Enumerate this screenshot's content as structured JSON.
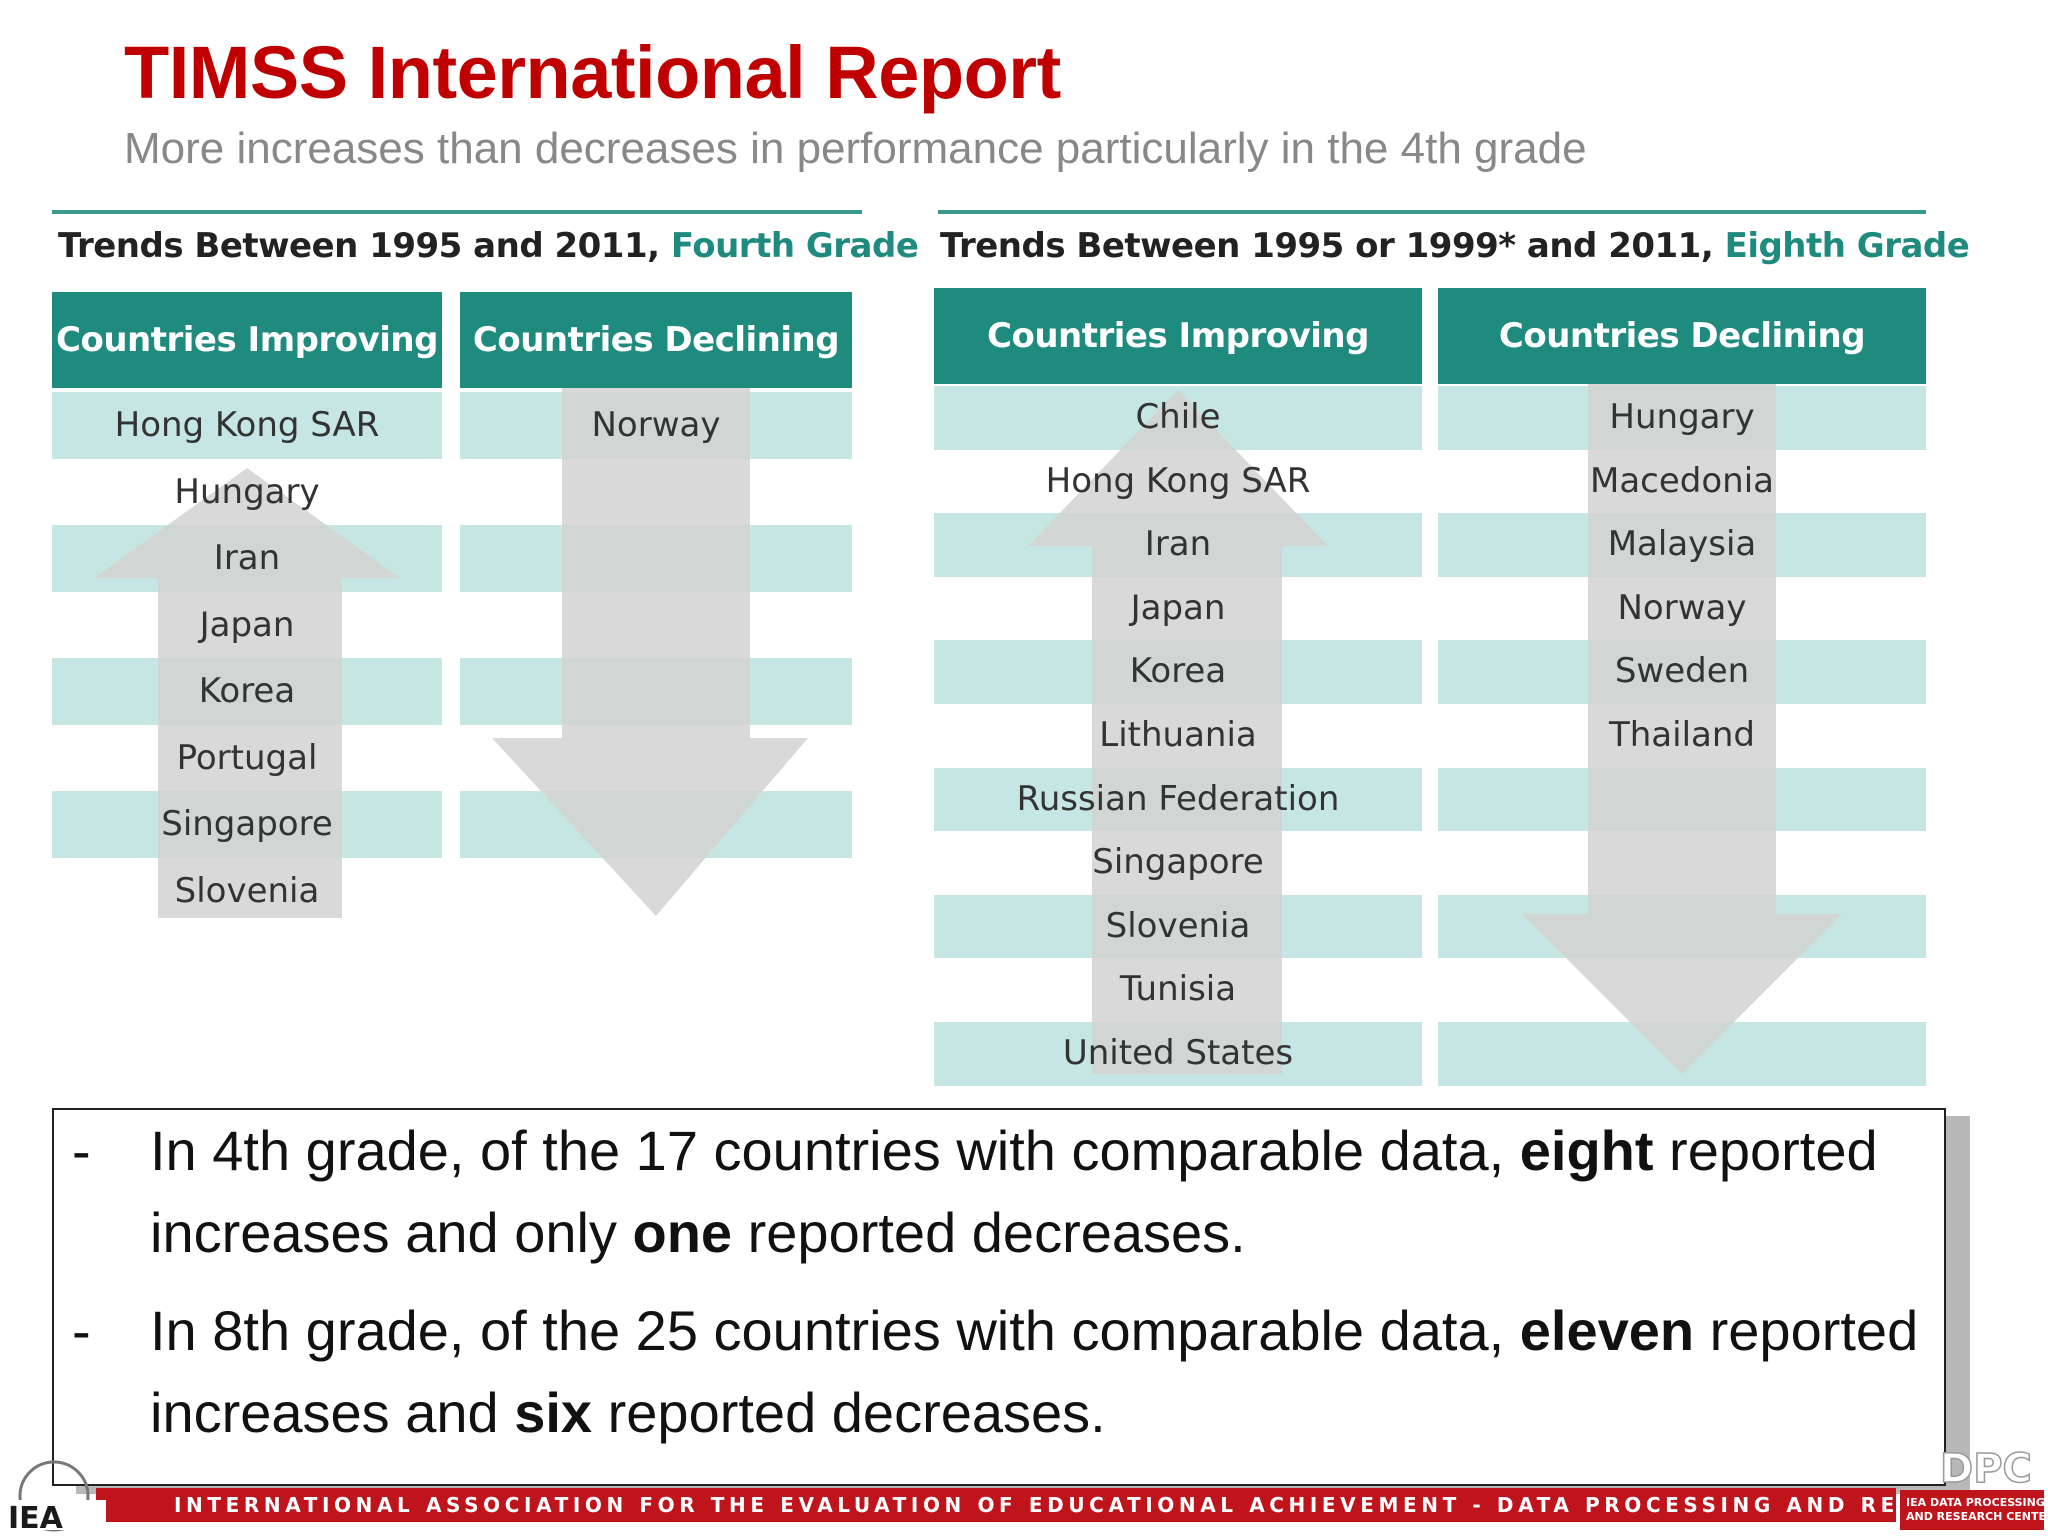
{
  "title": "TIMSS International Report",
  "subtitle": "More increases than decreases in performance particularly in the 4th grade",
  "fourth_grade": {
    "heading_prefix": "Trends Between 1995 and 2011,",
    "heading_grade": "Fourth Grade",
    "improving_label": "Countries Improving",
    "declining_label": "Countries Declining",
    "improving": [
      "Hong Kong SAR",
      "Hungary",
      "Iran",
      "Japan",
      "Korea",
      "Portugal",
      "Singapore",
      "Slovenia"
    ],
    "declining": [
      "Norway"
    ]
  },
  "eighth_grade": {
    "heading_prefix": "Trends Between 1995 or 1999* and 2011,",
    "heading_grade": "Eighth Grade",
    "improving_label": "Countries Improving",
    "declining_label": "Countries Declining",
    "improving": [
      "Chile",
      "Hong Kong SAR",
      "Iran",
      "Japan",
      "Korea",
      "Lithuania",
      "Russian Federation",
      "Singapore",
      "Slovenia",
      "Tunisia",
      "United States"
    ],
    "declining": [
      "Hungary",
      "Macedonia",
      "Malaysia",
      "Norway",
      "Sweden",
      "Thailand"
    ]
  },
  "summary": {
    "dash": "-",
    "b1_a": "In 4th grade, of the 17 countries with comparable data, ",
    "b1_bold1": "eight",
    "b1_b": " reported increases and only ",
    "b1_bold2": "one",
    "b1_c": " reported decreases.",
    "b2_a": "In 8th grade, of the 25 countries with comparable data, ",
    "b2_bold1": "eleven",
    "b2_b": " reported increases and ",
    "b2_bold2": "six",
    "b2_c": " reported decreases."
  },
  "footer": {
    "text": "INTERNATIONAL ASSOCIATION FOR THE EVALUATION OF EDUCATIONAL ACHIEVEMENT - DATA PROCESSING AND RESEARCH CENTER",
    "left_logo": "IEA",
    "right_logo": "DPC",
    "right_logo_sub1": "IEA DATA PROCESSING",
    "right_logo_sub2": "AND RESEARCH CENTER"
  },
  "colors": {
    "title": "#c00000",
    "teal_header": "#1f8a7e",
    "band": "#c6e6e4",
    "arrow": "#d2d2d2",
    "footer_red": "#c0141c"
  }
}
